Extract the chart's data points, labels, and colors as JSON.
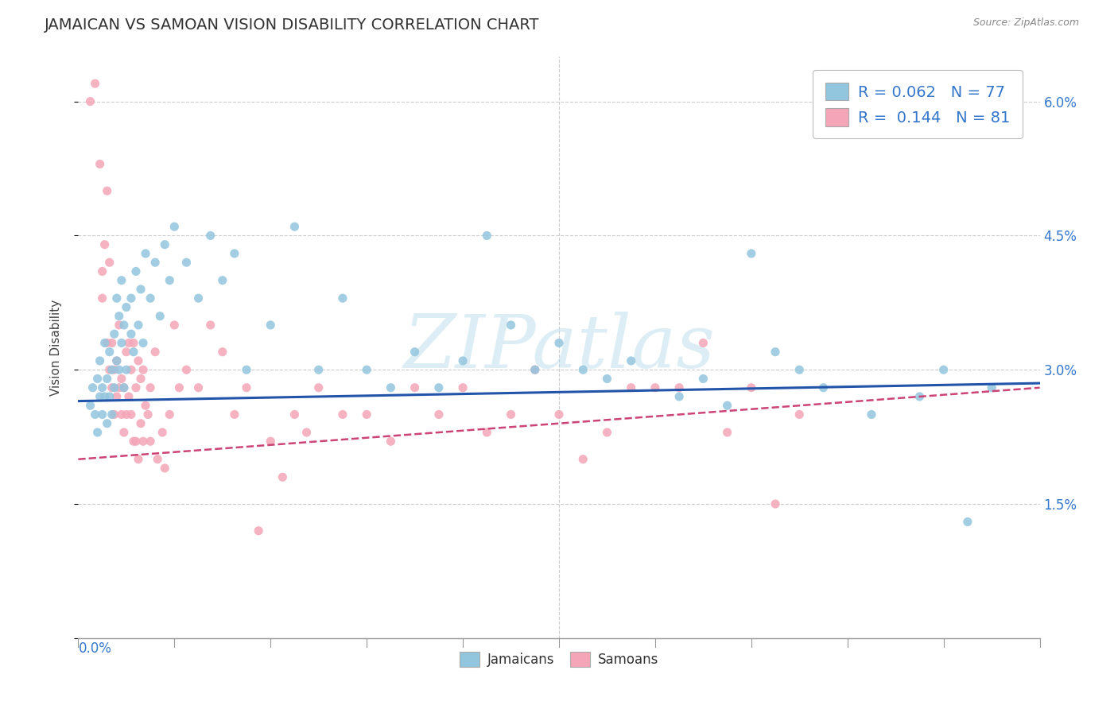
{
  "title": "JAMAICAN VS SAMOAN VISION DISABILITY CORRELATION CHART",
  "source": "Source: ZipAtlas.com",
  "ylabel": "Vision Disability",
  "yticks": [
    0.0,
    0.015,
    0.03,
    0.045,
    0.06
  ],
  "ytick_labels": [
    "",
    "1.5%",
    "3.0%",
    "4.5%",
    "6.0%"
  ],
  "xlim": [
    0.0,
    0.4
  ],
  "ylim": [
    0.0,
    0.065
  ],
  "blue_color": "#92c5de",
  "pink_color": "#f4a6b8",
  "blue_line_color": "#2255aa",
  "pink_line_color": "#cc4477",
  "R_blue": 0.062,
  "N_blue": 77,
  "R_pink": 0.144,
  "N_pink": 81,
  "watermark": "ZIPatlas",
  "blue_scatter": [
    [
      0.005,
      0.026
    ],
    [
      0.006,
      0.028
    ],
    [
      0.007,
      0.025
    ],
    [
      0.008,
      0.029
    ],
    [
      0.008,
      0.023
    ],
    [
      0.009,
      0.027
    ],
    [
      0.009,
      0.031
    ],
    [
      0.01,
      0.025
    ],
    [
      0.01,
      0.028
    ],
    [
      0.011,
      0.033
    ],
    [
      0.011,
      0.027
    ],
    [
      0.012,
      0.029
    ],
    [
      0.012,
      0.024
    ],
    [
      0.013,
      0.032
    ],
    [
      0.013,
      0.027
    ],
    [
      0.014,
      0.03
    ],
    [
      0.014,
      0.025
    ],
    [
      0.015,
      0.034
    ],
    [
      0.015,
      0.028
    ],
    [
      0.016,
      0.038
    ],
    [
      0.016,
      0.031
    ],
    [
      0.017,
      0.036
    ],
    [
      0.017,
      0.03
    ],
    [
      0.018,
      0.04
    ],
    [
      0.018,
      0.033
    ],
    [
      0.019,
      0.035
    ],
    [
      0.019,
      0.028
    ],
    [
      0.02,
      0.037
    ],
    [
      0.02,
      0.03
    ],
    [
      0.022,
      0.034
    ],
    [
      0.022,
      0.038
    ],
    [
      0.023,
      0.032
    ],
    [
      0.024,
      0.041
    ],
    [
      0.025,
      0.035
    ],
    [
      0.026,
      0.039
    ],
    [
      0.027,
      0.033
    ],
    [
      0.028,
      0.043
    ],
    [
      0.03,
      0.038
    ],
    [
      0.032,
      0.042
    ],
    [
      0.034,
      0.036
    ],
    [
      0.036,
      0.044
    ],
    [
      0.038,
      0.04
    ],
    [
      0.04,
      0.046
    ],
    [
      0.045,
      0.042
    ],
    [
      0.05,
      0.038
    ],
    [
      0.055,
      0.045
    ],
    [
      0.06,
      0.04
    ],
    [
      0.065,
      0.043
    ],
    [
      0.07,
      0.03
    ],
    [
      0.08,
      0.035
    ],
    [
      0.09,
      0.046
    ],
    [
      0.1,
      0.03
    ],
    [
      0.11,
      0.038
    ],
    [
      0.12,
      0.03
    ],
    [
      0.13,
      0.028
    ],
    [
      0.14,
      0.032
    ],
    [
      0.15,
      0.028
    ],
    [
      0.16,
      0.031
    ],
    [
      0.17,
      0.045
    ],
    [
      0.18,
      0.035
    ],
    [
      0.19,
      0.03
    ],
    [
      0.2,
      0.033
    ],
    [
      0.21,
      0.03
    ],
    [
      0.22,
      0.029
    ],
    [
      0.23,
      0.031
    ],
    [
      0.25,
      0.027
    ],
    [
      0.26,
      0.029
    ],
    [
      0.27,
      0.026
    ],
    [
      0.28,
      0.043
    ],
    [
      0.29,
      0.032
    ],
    [
      0.3,
      0.03
    ],
    [
      0.31,
      0.028
    ],
    [
      0.33,
      0.025
    ],
    [
      0.35,
      0.027
    ],
    [
      0.36,
      0.03
    ],
    [
      0.37,
      0.013
    ],
    [
      0.38,
      0.028
    ]
  ],
  "pink_scatter": [
    [
      0.005,
      0.06
    ],
    [
      0.007,
      0.062
    ],
    [
      0.009,
      0.053
    ],
    [
      0.01,
      0.038
    ],
    [
      0.01,
      0.041
    ],
    [
      0.011,
      0.044
    ],
    [
      0.012,
      0.05
    ],
    [
      0.012,
      0.033
    ],
    [
      0.013,
      0.03
    ],
    [
      0.013,
      0.042
    ],
    [
      0.014,
      0.028
    ],
    [
      0.014,
      0.033
    ],
    [
      0.015,
      0.03
    ],
    [
      0.015,
      0.025
    ],
    [
      0.016,
      0.031
    ],
    [
      0.016,
      0.027
    ],
    [
      0.017,
      0.028
    ],
    [
      0.017,
      0.035
    ],
    [
      0.018,
      0.029
    ],
    [
      0.018,
      0.025
    ],
    [
      0.019,
      0.028
    ],
    [
      0.019,
      0.023
    ],
    [
      0.02,
      0.032
    ],
    [
      0.02,
      0.025
    ],
    [
      0.021,
      0.033
    ],
    [
      0.021,
      0.027
    ],
    [
      0.022,
      0.03
    ],
    [
      0.022,
      0.025
    ],
    [
      0.023,
      0.033
    ],
    [
      0.023,
      0.022
    ],
    [
      0.024,
      0.028
    ],
    [
      0.024,
      0.022
    ],
    [
      0.025,
      0.031
    ],
    [
      0.025,
      0.02
    ],
    [
      0.026,
      0.029
    ],
    [
      0.026,
      0.024
    ],
    [
      0.027,
      0.03
    ],
    [
      0.027,
      0.022
    ],
    [
      0.028,
      0.026
    ],
    [
      0.029,
      0.025
    ],
    [
      0.03,
      0.028
    ],
    [
      0.03,
      0.022
    ],
    [
      0.032,
      0.032
    ],
    [
      0.033,
      0.02
    ],
    [
      0.035,
      0.023
    ],
    [
      0.036,
      0.019
    ],
    [
      0.038,
      0.025
    ],
    [
      0.04,
      0.035
    ],
    [
      0.042,
      0.028
    ],
    [
      0.045,
      0.03
    ],
    [
      0.05,
      0.028
    ],
    [
      0.055,
      0.035
    ],
    [
      0.06,
      0.032
    ],
    [
      0.065,
      0.025
    ],
    [
      0.07,
      0.028
    ],
    [
      0.075,
      0.012
    ],
    [
      0.08,
      0.022
    ],
    [
      0.085,
      0.018
    ],
    [
      0.09,
      0.025
    ],
    [
      0.095,
      0.023
    ],
    [
      0.1,
      0.028
    ],
    [
      0.11,
      0.025
    ],
    [
      0.12,
      0.025
    ],
    [
      0.13,
      0.022
    ],
    [
      0.14,
      0.028
    ],
    [
      0.15,
      0.025
    ],
    [
      0.16,
      0.028
    ],
    [
      0.17,
      0.023
    ],
    [
      0.18,
      0.025
    ],
    [
      0.19,
      0.03
    ],
    [
      0.2,
      0.025
    ],
    [
      0.21,
      0.02
    ],
    [
      0.22,
      0.023
    ],
    [
      0.23,
      0.028
    ],
    [
      0.24,
      0.028
    ],
    [
      0.25,
      0.028
    ],
    [
      0.26,
      0.033
    ],
    [
      0.27,
      0.023
    ],
    [
      0.28,
      0.028
    ],
    [
      0.29,
      0.015
    ],
    [
      0.3,
      0.025
    ]
  ],
  "blue_trend": {
    "slope": 0.005,
    "intercept": 0.0265
  },
  "pink_trend": {
    "slope": 0.02,
    "intercept": 0.02
  }
}
